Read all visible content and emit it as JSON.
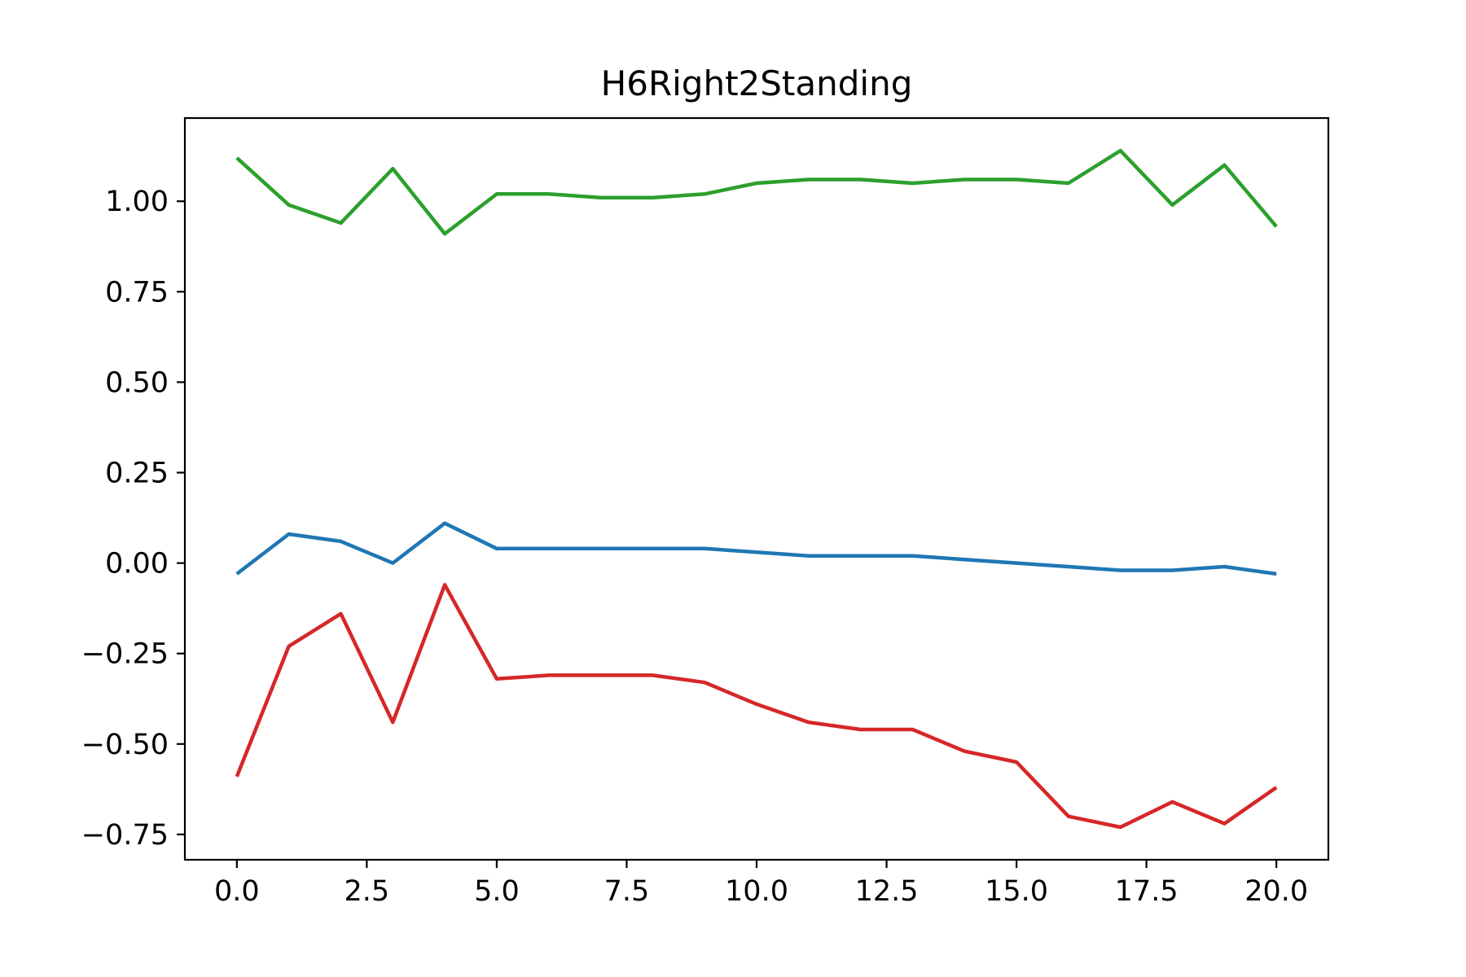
{
  "chart_data": {
    "type": "line",
    "title": "H6Right2Standing",
    "xlabel": "",
    "ylabel": "",
    "x": [
      0,
      1,
      2,
      3,
      4,
      5,
      6,
      7,
      8,
      9,
      10,
      11,
      12,
      13,
      14,
      15,
      16,
      17,
      18,
      19,
      20
    ],
    "xlim": [
      -1,
      21
    ],
    "ylim": [
      -0.82,
      1.23
    ],
    "x_ticks": [
      0.0,
      2.5,
      5.0,
      7.5,
      10.0,
      12.5,
      15.0,
      17.5,
      20.0
    ],
    "x_tick_labels": [
      "0.0",
      "2.5",
      "5.0",
      "7.5",
      "10.0",
      "12.5",
      "15.0",
      "17.5",
      "20.0"
    ],
    "y_ticks": [
      1.0,
      0.75,
      0.5,
      0.25,
      0.0,
      -0.25,
      -0.5,
      -0.75
    ],
    "y_tick_labels": [
      "1.00",
      "0.75",
      "0.50",
      "0.25",
      "0.00",
      "−0.25",
      "−0.50",
      "−0.75"
    ],
    "grid": false,
    "series": [
      {
        "color": "#1f77b4",
        "values": [
          -0.03,
          0.08,
          0.06,
          0.0,
          0.11,
          0.04,
          0.04,
          0.04,
          0.04,
          0.04,
          0.03,
          0.02,
          0.02,
          0.02,
          0.01,
          0.0,
          -0.01,
          -0.02,
          -0.02,
          -0.01,
          -0.03
        ]
      },
      {
        "color": "#2ca02c",
        "values": [
          1.12,
          0.99,
          0.94,
          1.09,
          0.91,
          1.02,
          1.02,
          1.01,
          1.01,
          1.02,
          1.05,
          1.06,
          1.06,
          1.05,
          1.06,
          1.06,
          1.05,
          1.14,
          0.99,
          1.1,
          0.93
        ]
      },
      {
        "color": "#d62728",
        "values": [
          -0.59,
          -0.23,
          -0.14,
          -0.44,
          -0.06,
          -0.32,
          -0.31,
          -0.31,
          -0.31,
          -0.33,
          -0.39,
          -0.44,
          -0.46,
          -0.46,
          -0.52,
          -0.55,
          -0.7,
          -0.73,
          -0.66,
          -0.72,
          -0.62
        ]
      }
    ]
  }
}
